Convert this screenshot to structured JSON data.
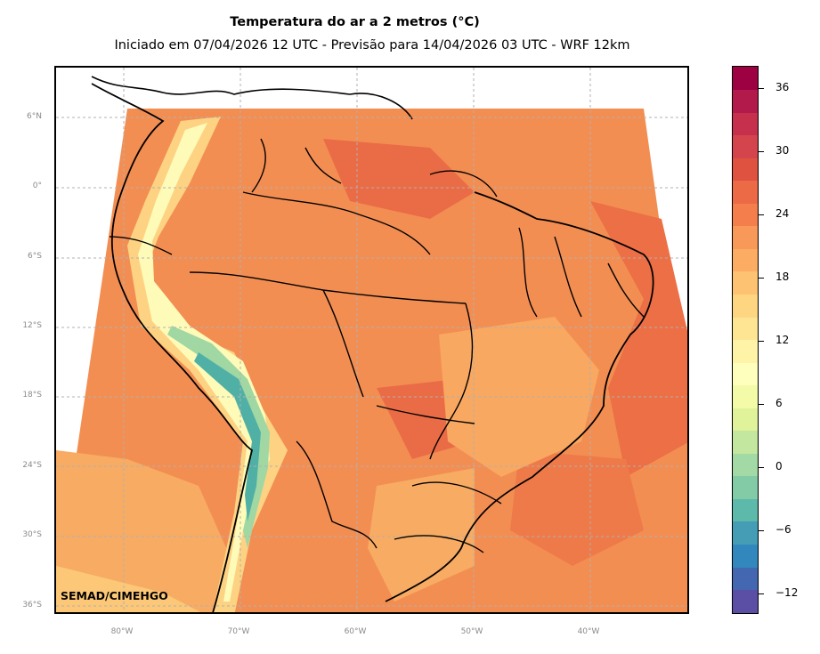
{
  "title": "Temperatura do ar a 2 metros (°C)",
  "subtitle": "Iniciado em 07/04/2026 12 UTC - Previsão para 14/04/2026 03 UTC - WRF 12km",
  "credit": "SEMAD/CIMEHGO",
  "map": {
    "lat_labels": [
      "6°N",
      "0°",
      "6°S",
      "12°S",
      "18°S",
      "24°S",
      "30°S",
      "36°S"
    ],
    "lon_labels": [
      "80°W",
      "70°W",
      "60°W",
      "50°W",
      "40°W"
    ],
    "gridlines": true,
    "colors": {
      "warm": "#ec7849",
      "hot": "#e05a43",
      "mild": "#f6a65d",
      "cool": "#fdd383",
      "cold": "#fefbb9",
      "highland": "#a0d7a3",
      "peak": "#50b0a6",
      "border": "#000000",
      "grid": "#b0b0b0"
    }
  },
  "colorbar": {
    "ticks": [
      "36",
      "30",
      "24",
      "18",
      "12",
      "6",
      "0",
      "−6",
      "−12"
    ],
    "colors": [
      "#5a4fa5",
      "#4367b0",
      "#3288bd",
      "#449db4",
      "#5db9a9",
      "#83cba6",
      "#a3d9a4",
      "#c3e79f",
      "#e1f39a",
      "#f4fba8",
      "#fefebd",
      "#fff3a8",
      "#fee593",
      "#fed681",
      "#fdc373",
      "#fcac63",
      "#f89859",
      "#f47f4d",
      "#ec6a46",
      "#e05240",
      "#d4444d",
      "#c6304d",
      "#b31a4c",
      "#9e0142"
    ]
  }
}
